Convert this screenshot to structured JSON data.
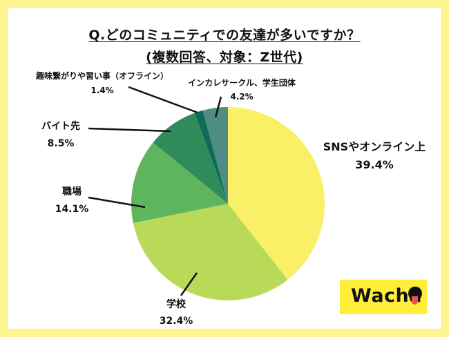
{
  "title_line1": "Q.どのコミュニティでの友達が多いですか？",
  "title_line2": "(複数回答、対象：Z世代)",
  "chart_data": {
    "type": "pie",
    "start_angle": "12 o'clock",
    "direction": "clockwise",
    "slices": [
      {
        "label": "SNSやオンライン上",
        "value": 39.4,
        "display": "39.4%",
        "color": "#faf068"
      },
      {
        "label": "学校",
        "value": 32.4,
        "display": "32.4%",
        "color": "#b9da58"
      },
      {
        "label": "職場",
        "value": 14.1,
        "display": "14.1%",
        "color": "#5fb55e"
      },
      {
        "label": "バイト先",
        "value": 8.5,
        "display": "8.5%",
        "color": "#2f8c5a"
      },
      {
        "label": "趣味繋がりや習い事（オフライン）",
        "value": 1.4,
        "display": "1.4%",
        "color": "#0f6b58"
      },
      {
        "label": "インカレサークル、学生団体",
        "value": 4.2,
        "display": "4.2%",
        "color": "#4f8d82"
      }
    ]
  },
  "logo": {
    "text": "Wacha"
  },
  "colors": {
    "background": "#fcf490",
    "panel": "#ffffff",
    "logo_bg": "#ffef3b",
    "logo_tongue": "#ef4f4f"
  }
}
